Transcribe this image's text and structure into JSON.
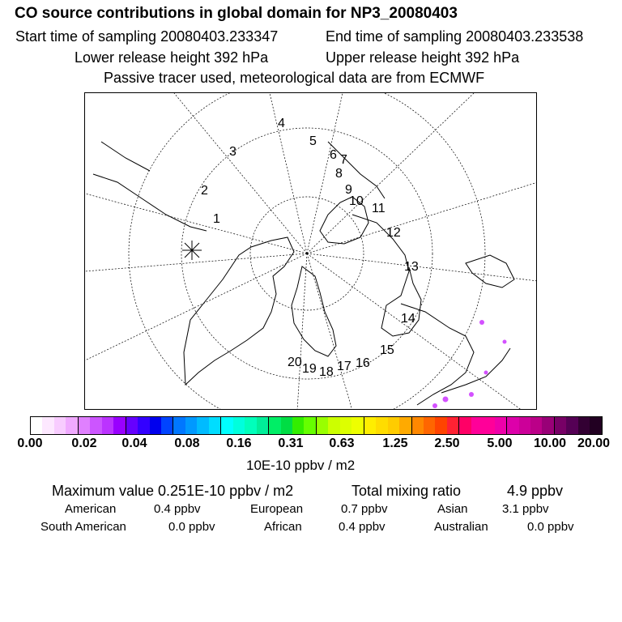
{
  "header": {
    "title": "CO  source contributions in global domain for NP3_20080403",
    "start_time": "Start time of sampling 20080403.233347",
    "end_time": "End time of sampling 20080403.233538",
    "lower_release": "Lower release height  392 hPa",
    "upper_release": "Upper release height  392 hPa",
    "note": "Passive tracer used, meteorological data are from ECMWF"
  },
  "map": {
    "projection": "polar-stereographic",
    "track_labels": [
      "1",
      "2",
      "3",
      "4",
      "5",
      "6",
      "7",
      "8",
      "9",
      "10",
      "11",
      "12",
      "13",
      "14",
      "15",
      "16",
      "17",
      "18",
      "19",
      "20"
    ],
    "release_marker": "asterisk",
    "colors": {
      "coast": "#000000",
      "grid": "#000000",
      "hotspot": "#cc33ff"
    }
  },
  "colorbar": {
    "tick_labels": [
      "0.00",
      "0.02",
      "0.04",
      "0.08",
      "0.16",
      "0.31",
      "0.63",
      "1.25",
      "2.50",
      "5.00",
      "10.00",
      "20.00"
    ],
    "colors": [
      "#ffffff",
      "#fde8ff",
      "#f8ccff",
      "#f0aaff",
      "#e080ff",
      "#cc55ff",
      "#bb33ff",
      "#9900ff",
      "#6600ff",
      "#3300ff",
      "#0000ee",
      "#0044ff",
      "#0077ff",
      "#0099ff",
      "#00bbff",
      "#00ddff",
      "#00ffff",
      "#00ffdd",
      "#00ffbb",
      "#00ee99",
      "#00ee66",
      "#00dd44",
      "#33ee00",
      "#66ff00",
      "#99ff00",
      "#ccff00",
      "#ddff00",
      "#eeff00",
      "#ffee00",
      "#ffdd00",
      "#ffcc00",
      "#ffaa00",
      "#ff8800",
      "#ff6600",
      "#ff4400",
      "#ff2233",
      "#ff0066",
      "#ff0099",
      "#ff0099",
      "#ee00aa",
      "#dd00aa",
      "#cc0099",
      "#bb0088",
      "#990077",
      "#770066",
      "#550055",
      "#330033",
      "#220022"
    ],
    "unit": "10E-10 ppbv / m2"
  },
  "stats": {
    "max_label": "Maximum value  0.251E-10 ppbv / m2",
    "total_label": "Total mixing ratio",
    "total_value": "4.9 ppbv",
    "sources": [
      {
        "name": "American",
        "value": "0.4 ppbv"
      },
      {
        "name": "European",
        "value": "0.7 ppbv"
      },
      {
        "name": "Asian",
        "value": "3.1 ppbv"
      },
      {
        "name": "South American",
        "value": "0.0 ppbv"
      },
      {
        "name": "African",
        "value": "0.4 ppbv"
      },
      {
        "name": "Australian",
        "value": "0.0 ppbv"
      }
    ]
  }
}
